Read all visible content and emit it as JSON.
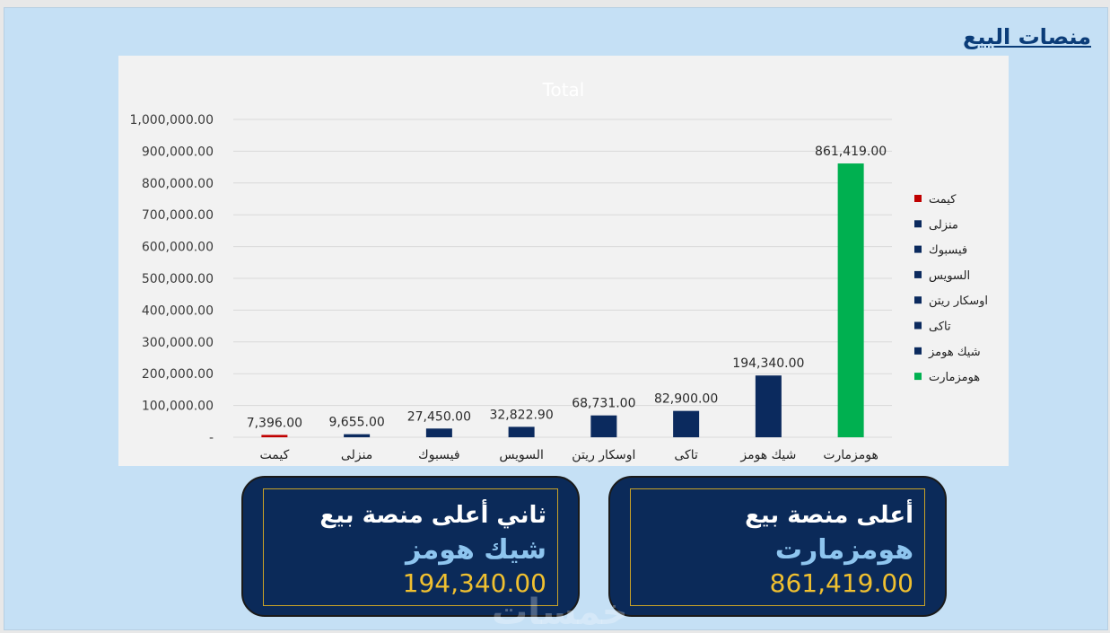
{
  "page": {
    "title": "منصات البيع"
  },
  "chart_data": {
    "type": "bar",
    "title": "Total",
    "categories": [
      "كيمت",
      "منزلى",
      "فيسبوك",
      "السويس",
      "اوسكار ريتن",
      "تاكى",
      "شيك هومز",
      "هومزمارت"
    ],
    "values": [
      7396,
      9655,
      27450,
      32822.9,
      68731,
      82900,
      194340,
      861419
    ],
    "value_labels": [
      "7,396.00",
      "9,655.00",
      "27,450.00",
      "32,822.90",
      "68,731.00",
      "82,900.00",
      "194,340.00",
      "861,419.00"
    ],
    "ylim": [
      0,
      1000000
    ],
    "yticks": [
      0,
      100000,
      200000,
      300000,
      400000,
      500000,
      600000,
      700000,
      800000,
      900000,
      1000000
    ],
    "ytick_labels": [
      "-",
      "100,000.00",
      "200,000.00",
      "300,000.00",
      "400,000.00",
      "500,000.00",
      "600,000.00",
      "700,000.00",
      "800,000.00",
      "900,000.00",
      "1,000,000.00"
    ],
    "grid": true,
    "legend_position": "right",
    "legend": [
      "كيمت",
      "منزلى",
      "فيسبوك",
      "السويس",
      "اوسكار ريتن",
      "تاكى",
      "شيك هومز",
      "هومزمارت"
    ],
    "colors": [
      "#c00000",
      "#0b2a5e",
      "#0b2a5e",
      "#0b2a5e",
      "#0b2a5e",
      "#0b2a5e",
      "#0b2a5e",
      "#00b050"
    ]
  },
  "cards": {
    "top": {
      "heading": "أعلى منصة بيع",
      "name": "هومزمارت",
      "value": "861,419.00"
    },
    "second": {
      "heading": "ثاني أعلى منصة بيع",
      "name": "شيك هومز",
      "value": "194,340.00"
    }
  },
  "watermark": "خمسات"
}
